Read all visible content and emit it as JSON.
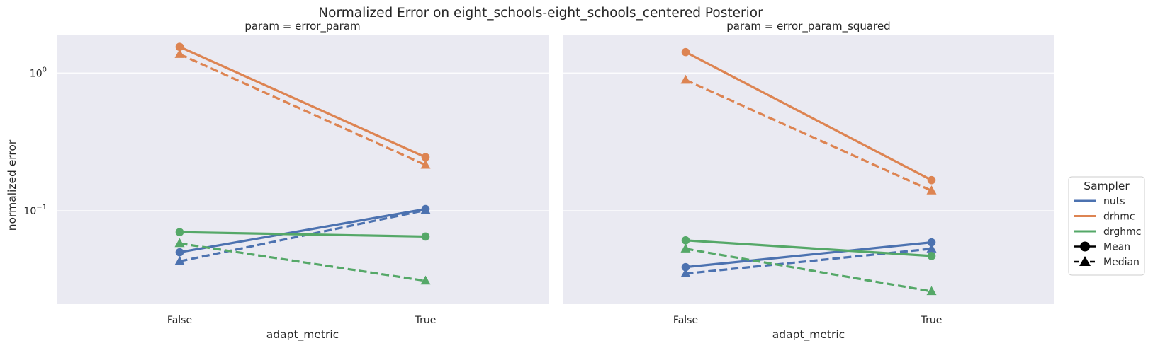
{
  "chart_data": {
    "type": "line",
    "title": "Normalized Error on eight_schools-eight_schools_centered Posterior",
    "ylabel": "normalized error",
    "yscale": "log",
    "ylim": [
      0.021,
      1.9
    ],
    "grid": true,
    "legend": {
      "title": "Sampler",
      "placement": "center-right",
      "hue_entries": [
        {
          "label": "nuts",
          "color": "#4c72b0"
        },
        {
          "label": "drhmc",
          "color": "#dd8452"
        },
        {
          "label": "drghmc",
          "color": "#55a868"
        }
      ],
      "style_entries": [
        {
          "label": "Mean",
          "marker": "circle",
          "dash": "solid"
        },
        {
          "label": "Median",
          "marker": "triangle",
          "dash": "dashed"
        }
      ]
    },
    "panels": [
      {
        "title": "param = error_param",
        "xlabel": "adapt_metric",
        "categories": [
          "False",
          "True"
        ],
        "series": [
          {
            "name": "nuts",
            "stat": "Mean",
            "values": [
              0.05,
              0.103
            ]
          },
          {
            "name": "nuts",
            "stat": "Median",
            "values": [
              0.043,
              0.101
            ]
          },
          {
            "name": "drhmc",
            "stat": "Mean",
            "values": [
              1.55,
              0.245
            ]
          },
          {
            "name": "drhmc",
            "stat": "Median",
            "values": [
              1.37,
              0.215
            ]
          },
          {
            "name": "drghmc",
            "stat": "Mean",
            "values": [
              0.07,
              0.065
            ]
          },
          {
            "name": "drghmc",
            "stat": "Median",
            "values": [
              0.058,
              0.031
            ]
          }
        ]
      },
      {
        "title": "param = error_param_squared",
        "xlabel": "adapt_metric",
        "categories": [
          "False",
          "True"
        ],
        "series": [
          {
            "name": "nuts",
            "stat": "Mean",
            "values": [
              0.039,
              0.059
            ]
          },
          {
            "name": "nuts",
            "stat": "Median",
            "values": [
              0.035,
              0.053
            ]
          },
          {
            "name": "drhmc",
            "stat": "Mean",
            "values": [
              1.42,
              0.167
            ]
          },
          {
            "name": "drhmc",
            "stat": "Median",
            "values": [
              0.89,
              0.14
            ]
          },
          {
            "name": "drghmc",
            "stat": "Mean",
            "values": [
              0.061,
              0.047
            ]
          },
          {
            "name": "drghmc",
            "stat": "Median",
            "values": [
              0.053,
              0.026
            ]
          }
        ]
      }
    ],
    "yticks": [
      {
        "value": 1,
        "base": "10",
        "exp": "0"
      },
      {
        "value": 0.1,
        "base": "10",
        "exp": "−1"
      }
    ]
  }
}
